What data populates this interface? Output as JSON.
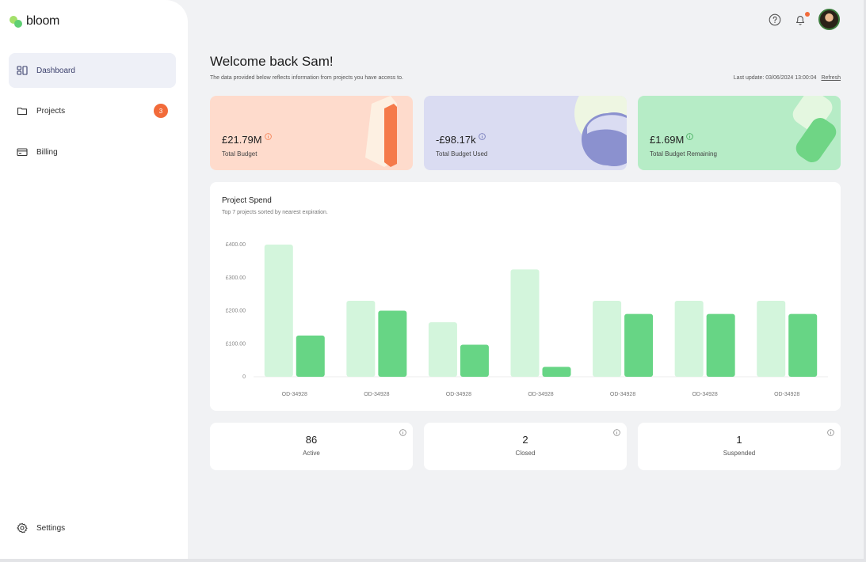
{
  "brand": {
    "name": "bloom"
  },
  "sidebar": {
    "items": [
      {
        "label": "Dashboard",
        "icon": "dashboard-icon",
        "active": true
      },
      {
        "label": "Projects",
        "icon": "folder-icon",
        "badge": "3"
      },
      {
        "label": "Billing",
        "icon": "card-icon"
      }
    ],
    "settings_label": "Settings"
  },
  "header": {
    "welcome": "Welcome back Sam!",
    "subtitle": "The data provided below reflects information from projects you have access to.",
    "last_update_label": "Last update: 03/06/2024 13:00:04",
    "refresh_label": "Refresh"
  },
  "stats": [
    {
      "value": "£21.79M",
      "label": "Total Budget",
      "color": "#fedbcc"
    },
    {
      "value": "-£98.17k",
      "label": "Total Budget Used",
      "color": "#dadcf2"
    },
    {
      "value": "£1.69M",
      "label": "Total Budget Remaining",
      "color": "#b6ecc6"
    }
  ],
  "project_spend": {
    "title": "Project Spend",
    "subtitle": "Top 7 projects sorted by nearest expiration."
  },
  "chart_data": {
    "type": "bar",
    "categories": [
      "OD-34928",
      "OD-34928",
      "OD-34928",
      "OD-34928",
      "OD-34928",
      "OD-34928",
      "OD-34928"
    ],
    "series": [
      {
        "values": [
          400,
          230,
          165,
          325,
          230,
          230,
          230
        ],
        "color": "#d3f5dc"
      },
      {
        "values": [
          125,
          200,
          97,
          30,
          190,
          190,
          190
        ],
        "color": "#67d585"
      }
    ],
    "yticks": [
      "0",
      "£100.00",
      "£200.00",
      "£300.00",
      "£400.00"
    ],
    "ylim": [
      0,
      410
    ]
  },
  "counts": [
    {
      "value": "86",
      "label": "Active"
    },
    {
      "value": "2",
      "label": "Closed"
    },
    {
      "value": "1",
      "label": "Suspended"
    }
  ]
}
